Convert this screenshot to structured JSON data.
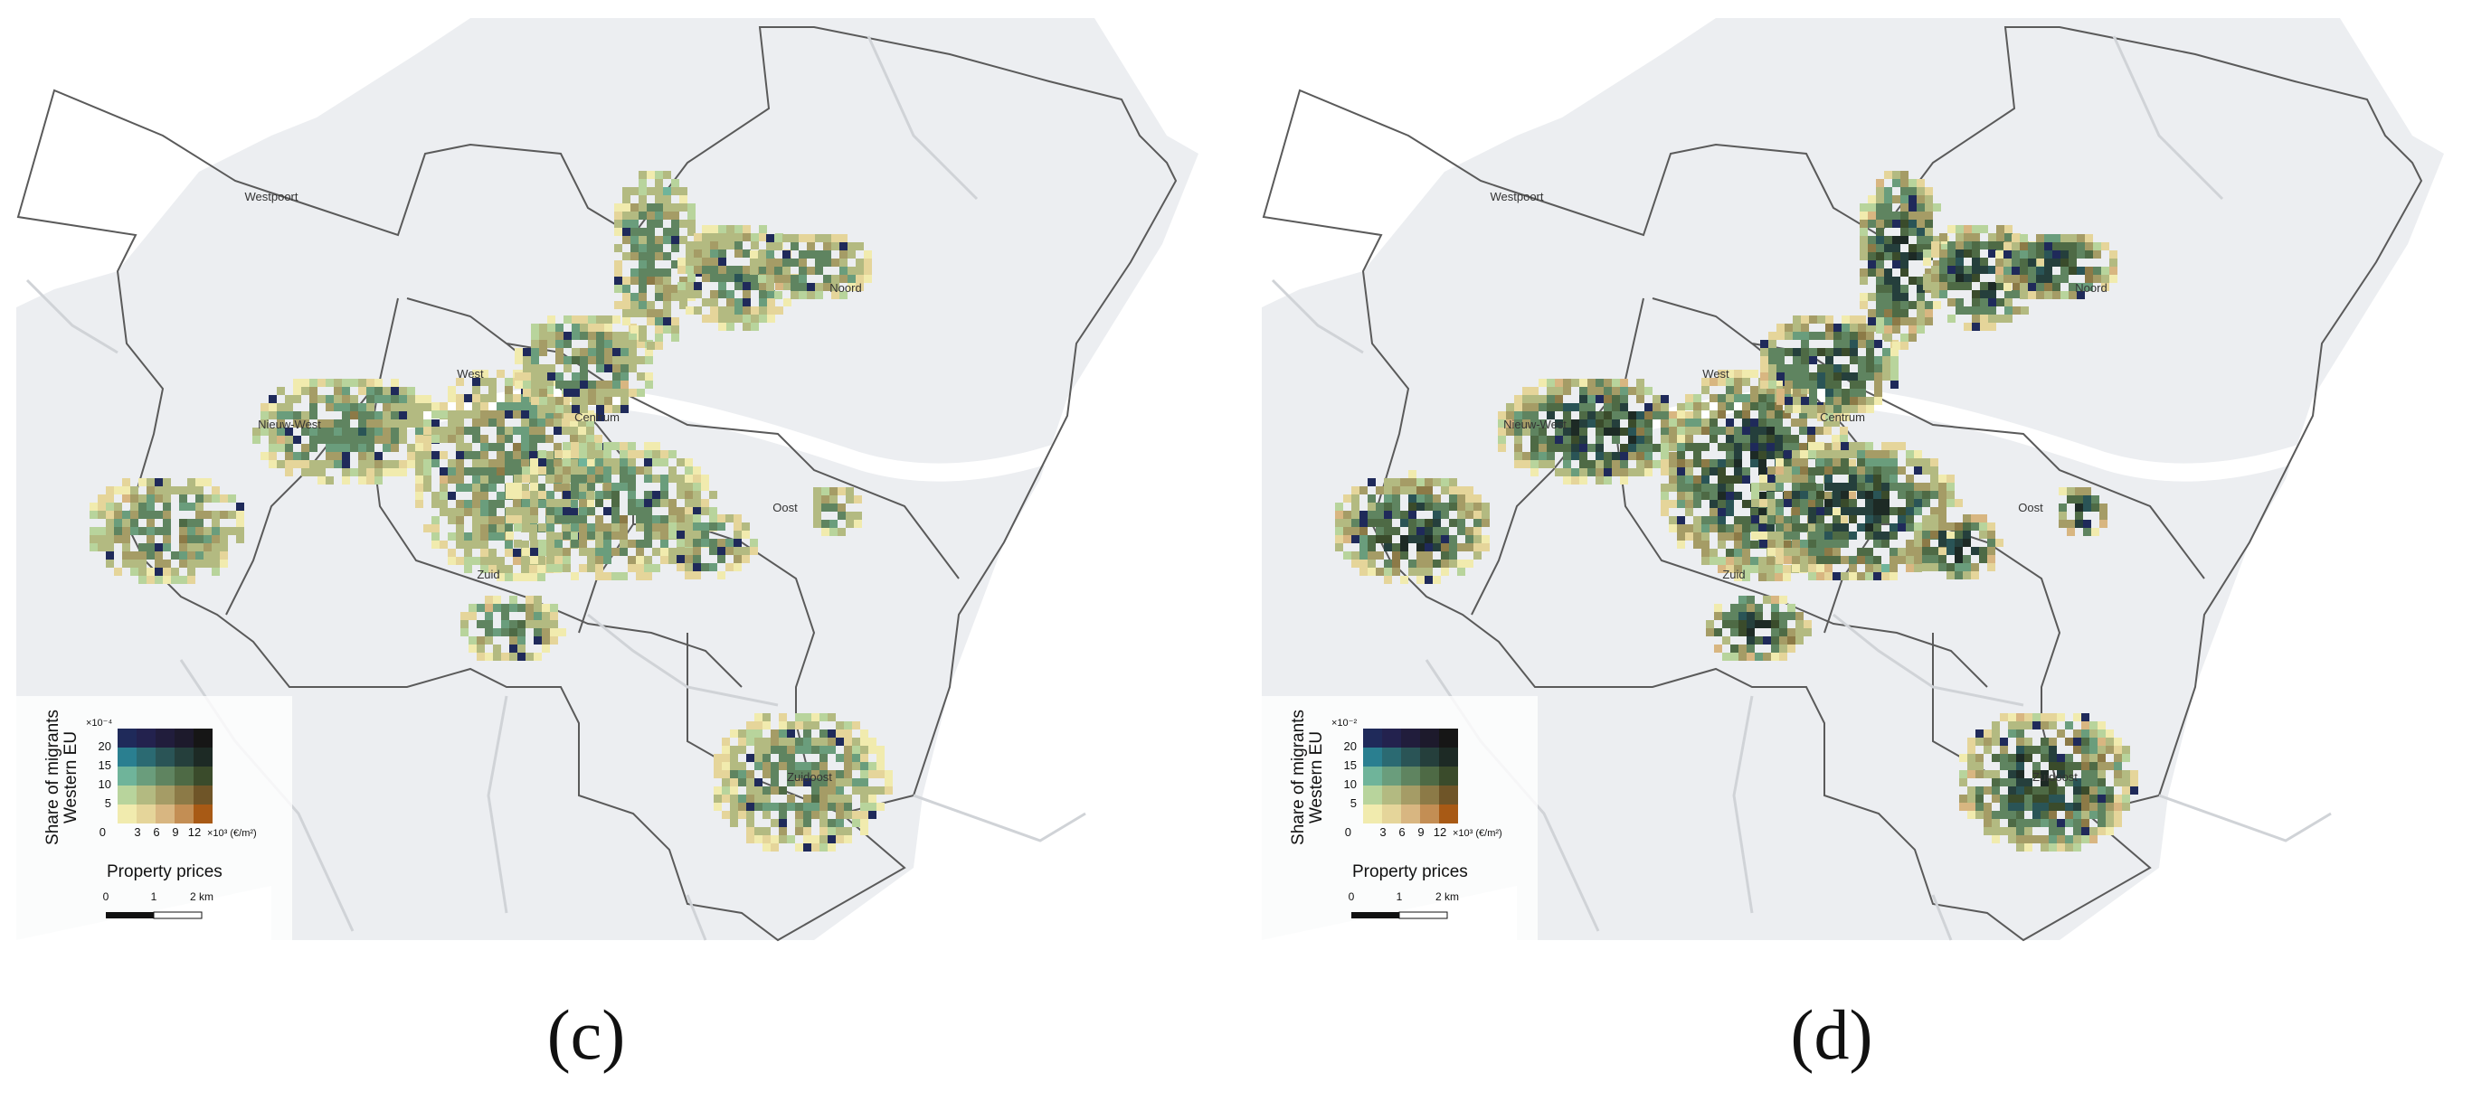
{
  "panels": [
    {
      "label": "(c)",
      "districts": [
        "Westpoort",
        "Noord",
        "West",
        "Nieuw-West",
        "Centrum",
        "Oost",
        "Zuid",
        "Zuidoost"
      ],
      "legend": {
        "y_title_line1": "Share of migrants",
        "y_title_line2": "Western EU",
        "y_exponent": "×10⁻⁴",
        "y_ticks": [
          "20",
          "15",
          "10",
          "5",
          "0"
        ],
        "x_ticks": [
          "3",
          "6",
          "9",
          "12"
        ],
        "x_unit": "×10³ (€/m²)",
        "x_title": "Property prices"
      },
      "scale": {
        "labels": [
          "0",
          "1",
          "2 km"
        ]
      }
    },
    {
      "label": "(d)",
      "districts": [
        "Westpoort",
        "Noord",
        "West",
        "Nieuw-West",
        "Centrum",
        "Oost",
        "Zuid",
        "Zuidoost"
      ],
      "legend": {
        "y_title_line1": "Share of migrants",
        "y_title_line2": "Western EU",
        "y_exponent": "×10⁻²",
        "y_ticks": [
          "20",
          "15",
          "10",
          "5",
          "0"
        ],
        "x_ticks": [
          "3",
          "6",
          "9",
          "12"
        ],
        "x_unit": "×10³ (€/m²)",
        "x_title": "Property prices"
      },
      "scale": {
        "labels": [
          "0",
          "1",
          "2 km"
        ]
      }
    }
  ],
  "bivariate_colors": [
    [
      "#1f2a5a",
      "#23224e",
      "#211d3c",
      "#1d1a2c",
      "#161616"
    ],
    [
      "#2a7f90",
      "#2b6a72",
      "#2a5456",
      "#253f3c",
      "#1d2a25"
    ],
    [
      "#6fb49a",
      "#6a9d7c",
      "#5f8460",
      "#4e6a45",
      "#3a4b2b"
    ],
    [
      "#b8d49c",
      "#b3ba81",
      "#a59c66",
      "#8c7a47",
      "#6f5528"
    ],
    [
      "#f1ebae",
      "#e5d59a",
      "#d8b681",
      "#c38e54",
      "#a85a15"
    ]
  ]
}
